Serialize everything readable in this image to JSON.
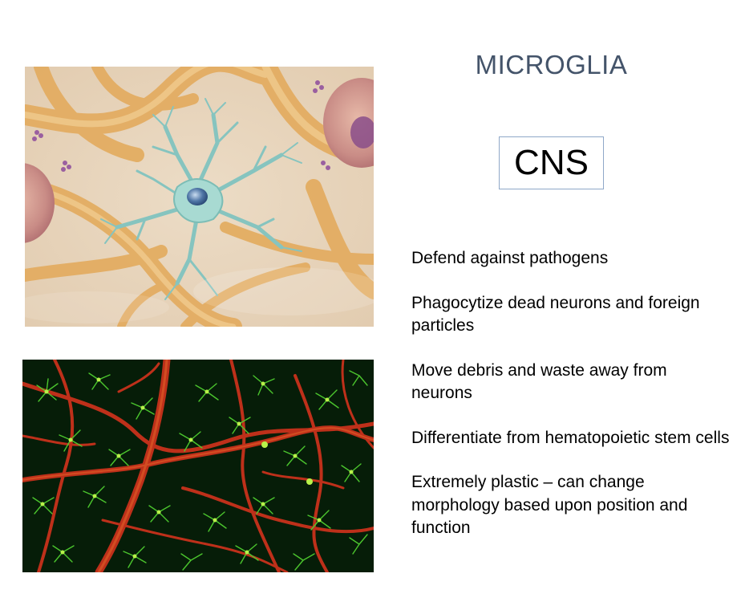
{
  "slide": {
    "title": "MICROGLIA",
    "label_box": "CNS",
    "bullets": [
      "Defend against pathogens",
      "Phagocytize dead neurons and foreign particles",
      "Move debris and waste away from neurons",
      "Differentiate from hematopoietic stem cells",
      "Extremely plastic – can change morphology based upon position and function"
    ]
  },
  "images": {
    "illustration": "microglia-cell-illustration",
    "micrograph": "fluorescent-microglia-micrograph"
  },
  "colors": {
    "title": "#44546a",
    "box_border": "#8fa8c8",
    "microglia_cell": "#8fd0c8",
    "neuron_process": "#e8b76a",
    "vessel_red": "#d23a1e",
    "microglia_green": "#52d233"
  }
}
